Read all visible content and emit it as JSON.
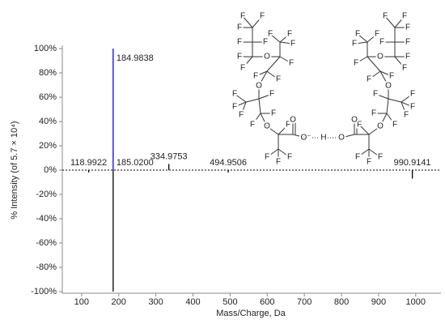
{
  "chart_data": {
    "type": "spectrum",
    "xlabel": "Mass/Charge, Da",
    "ylabel": "% Intensity (of 5.7 × 10⁴)",
    "xlim": [
      48,
      1068
    ],
    "ylim": [
      -100,
      100
    ],
    "xticks": [
      100,
      200,
      300,
      400,
      500,
      600,
      700,
      800,
      900,
      1000
    ],
    "yticks": [
      {
        "value": 100,
        "label": "100%"
      },
      {
        "value": 80,
        "label": "80%"
      },
      {
        "value": 60,
        "label": "60%"
      },
      {
        "value": 40,
        "label": "40%"
      },
      {
        "value": 20,
        "label": "20%"
      },
      {
        "value": 0,
        "label": "0%"
      },
      {
        "value": -20,
        "label": "-20%"
      },
      {
        "value": -40,
        "label": "-40%"
      },
      {
        "value": -60,
        "label": "-60%"
      },
      {
        "value": -80,
        "label": "-80%"
      },
      {
        "value": -100,
        "label": "-100%"
      }
    ],
    "series": [
      {
        "color": "#0000ff",
        "x": [
          184.9838
        ],
        "values": [
          100
        ],
        "peak_labels": [
          "184.9838"
        ]
      },
      {
        "color": "#000000",
        "x": [
          118.9922,
          185.02,
          334.9753,
          494.9506,
          990.9141
        ],
        "values": [
          -2,
          -100,
          5,
          -2,
          -7
        ],
        "peak_labels": [
          "118.9922",
          "185.0200",
          "334.9753",
          "494.9506",
          "990.9141"
        ]
      }
    ]
  },
  "structure": {
    "left": [
      "F",
      "F",
      "F",
      "F",
      "F",
      "F",
      "F",
      "O",
      "F",
      "F",
      "F",
      "F",
      "F",
      "F",
      "O",
      "F",
      "F",
      "F",
      "F",
      "F",
      "F",
      "O",
      "F",
      "F",
      "F",
      "F",
      "O",
      "O⁻"
    ],
    "hydrogen": "H",
    "right": [
      "F",
      "F",
      "F",
      "F",
      "F",
      "F",
      "F",
      "O",
      "F",
      "F",
      "F",
      "F",
      "F",
      "F",
      "O",
      "F",
      "F",
      "F",
      "F",
      "F",
      "F",
      "O",
      "F",
      "F",
      "F",
      "F",
      "O",
      "O"
    ]
  }
}
